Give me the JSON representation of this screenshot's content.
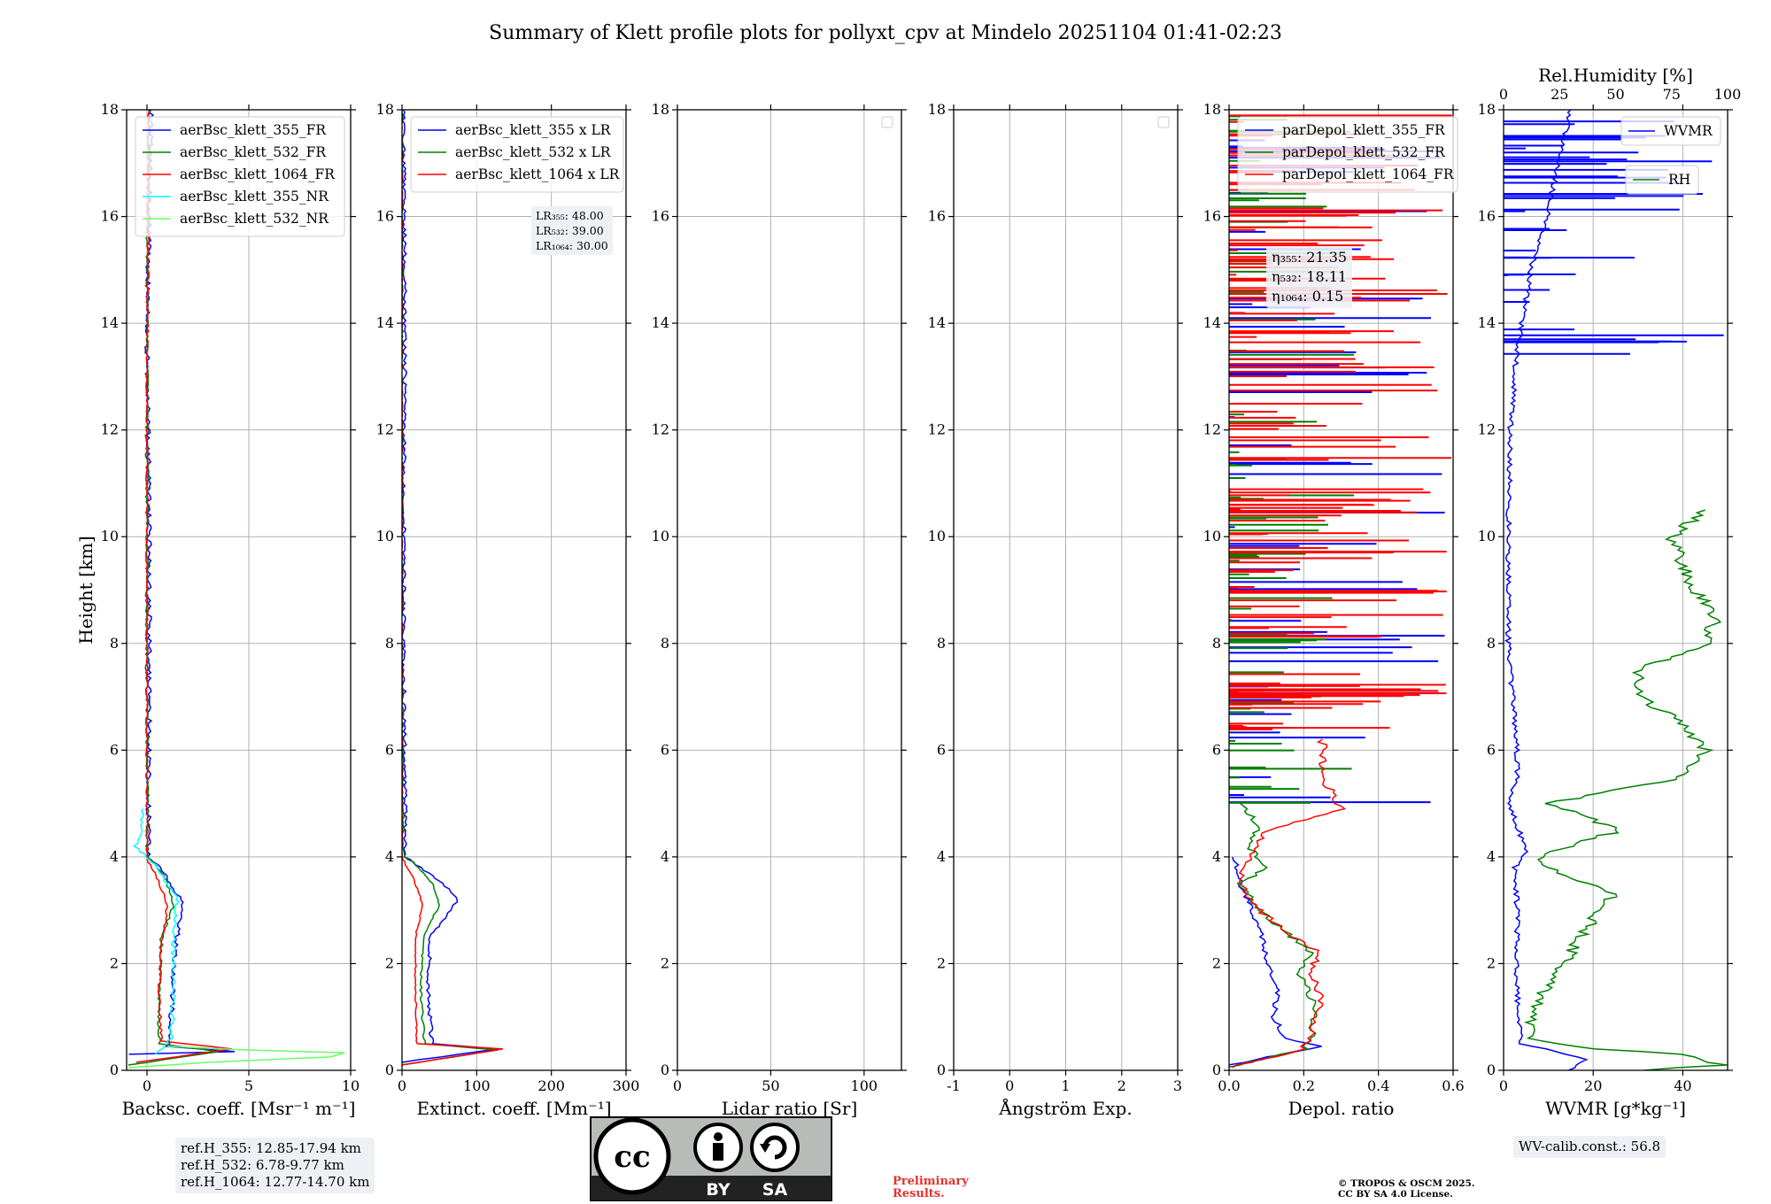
{
  "title": "Summary of Klett profile plots for pollyxt_cpv at Mindelo 20251104 01:41-02:23",
  "colors": {
    "c355": "#0000ff",
    "c532": "#008000",
    "c1064": "#ff0000",
    "c355nr": "#00ffff",
    "c532nr": "#66ff66",
    "grid": "#b0b0b0"
  },
  "chart_data": [
    {
      "type": "line",
      "id": "backscatter",
      "xlabel": "Backsc. coeff. [Msr⁻¹ m⁻¹]",
      "ylabel": "Height [km]",
      "xlim": [
        -1,
        10
      ],
      "ylim": [
        0,
        18
      ],
      "xticks": [
        0,
        5,
        10
      ],
      "yticks": [
        0,
        2,
        4,
        6,
        8,
        10,
        12,
        14,
        16,
        18
      ],
      "legend": "top-left",
      "series": [
        {
          "name": "aerBsc_klett_355_FR",
          "color": "c355",
          "noise": 0.12,
          "points": [
            [
              -0.9,
              0.3
            ],
            [
              4.2,
              0.35
            ],
            [
              1.0,
              0.45
            ],
            [
              1.2,
              1.0
            ],
            [
              1.3,
              2.0
            ],
            [
              1.6,
              2.8
            ],
            [
              1.7,
              3.2
            ],
            [
              1.3,
              3.4
            ],
            [
              0.6,
              3.8
            ],
            [
              0.05,
              4.0
            ],
            [
              0.1,
              6
            ],
            [
              0.1,
              10
            ],
            [
              0,
              14
            ],
            [
              0.1,
              16
            ],
            [
              0.2,
              18
            ]
          ]
        },
        {
          "name": "aerBsc_klett_532_FR",
          "color": "c532",
          "noise": 0.08,
          "points": [
            [
              -0.9,
              0.1
            ],
            [
              3.5,
              0.35
            ],
            [
              0.6,
              0.5
            ],
            [
              0.6,
              1.5
            ],
            [
              0.7,
              2.5
            ],
            [
              1.3,
              3.1
            ],
            [
              1.0,
              3.5
            ],
            [
              0.4,
              3.9
            ],
            [
              0,
              4.0
            ],
            [
              0,
              6
            ],
            [
              0,
              10
            ],
            [
              0,
              14
            ],
            [
              0.05,
              16
            ],
            [
              0.1,
              18
            ]
          ]
        },
        {
          "name": "aerBsc_klett_1064_FR",
          "color": "c1064",
          "noise": 0.06,
          "points": [
            [
              -0.5,
              0.15
            ],
            [
              4.2,
              0.4
            ],
            [
              0.7,
              0.55
            ],
            [
              0.6,
              1.5
            ],
            [
              0.7,
              2.3
            ],
            [
              1.0,
              3.1
            ],
            [
              0.5,
              3.6
            ],
            [
              0.1,
              3.9
            ],
            [
              0,
              4.0
            ],
            [
              0,
              8
            ],
            [
              0,
              12
            ],
            [
              0.05,
              16
            ],
            [
              0.1,
              18
            ]
          ]
        },
        {
          "name": "aerBsc_klett_355_NR",
          "color": "c355nr",
          "noise": 0.1,
          "points": [
            [
              0.5,
              0.3
            ],
            [
              1.2,
              0.6
            ],
            [
              1.3,
              1.5
            ],
            [
              1.3,
              2.5
            ],
            [
              1.5,
              3.2
            ],
            [
              0.3,
              3.9
            ],
            [
              -0.6,
              4.2
            ],
            [
              -0.3,
              4.5
            ],
            [
              -0.2,
              4.9
            ]
          ]
        },
        {
          "name": "aerBsc_klett_532_NR",
          "color": "c532nr",
          "noise": 0.0,
          "points": [
            [
              -0.9,
              0.05
            ],
            [
              3.0,
              0.15
            ],
            [
              9.0,
              0.25
            ],
            [
              9.7,
              0.33
            ],
            [
              5.0,
              0.38
            ],
            [
              1.0,
              0.45
            ]
          ]
        }
      ],
      "info_box": [
        "ref.H_355: 12.85-17.94 km",
        "ref.H_532: 6.78-9.77 km",
        "ref.H_1064: 12.77-14.70 km"
      ]
    },
    {
      "type": "line",
      "id": "extinction",
      "xlabel": "Extinct. coeff. [Mm⁻¹]",
      "xlim": [
        0,
        300
      ],
      "ylim": [
        0,
        18
      ],
      "xticks": [
        0,
        100,
        200,
        300
      ],
      "yticks": [
        0,
        2,
        4,
        6,
        8,
        10,
        12,
        14,
        16,
        18
      ],
      "legend": "top-left",
      "series": [
        {
          "name": "aerBsc_klett_355 x LR",
          "color": "c355",
          "noise": 2.5,
          "points": [
            [
              0,
              0.15
            ],
            [
              130,
              0.4
            ],
            [
              40,
              0.5
            ],
            [
              35,
              1.5
            ],
            [
              38,
              2.5
            ],
            [
              75,
              3.2
            ],
            [
              55,
              3.5
            ],
            [
              25,
              3.8
            ],
            [
              5,
              4.0
            ],
            [
              2,
              8
            ],
            [
              3,
              12
            ],
            [
              4,
              14.5
            ],
            [
              3,
              16
            ],
            [
              2,
              18
            ]
          ]
        },
        {
          "name": "aerBsc_klett_532 x LR",
          "color": "c532",
          "noise": 1.5,
          "points": [
            [
              0,
              0.1
            ],
            [
              128,
              0.38
            ],
            [
              30,
              0.5
            ],
            [
              25,
              1.5
            ],
            [
              28,
              2.5
            ],
            [
              50,
              3.1
            ],
            [
              40,
              3.5
            ],
            [
              15,
              3.9
            ],
            [
              2,
              4.0
            ],
            [
              0,
              8
            ],
            [
              0,
              14
            ],
            [
              0,
              18
            ]
          ]
        },
        {
          "name": "aerBsc_klett_1064 x LR",
          "color": "c1064",
          "noise": 1.0,
          "points": [
            [
              0,
              0.1
            ],
            [
              135,
              0.4
            ],
            [
              20,
              0.5
            ],
            [
              18,
              1.5
            ],
            [
              18,
              2.5
            ],
            [
              28,
              3.1
            ],
            [
              15,
              3.6
            ],
            [
              3,
              3.9
            ],
            [
              0,
              4.0
            ],
            [
              0,
              10
            ],
            [
              0,
              18
            ]
          ]
        }
      ],
      "info_box": [
        "LR₃₅₅: 48.00",
        "LR₅₃₂: 39.00",
        "LR₁₀₆₄: 30.00"
      ]
    },
    {
      "type": "line",
      "id": "lidar-ratio",
      "xlabel": "Lidar ratio [Sr]",
      "xlim": [
        0,
        120
      ],
      "ylim": [
        0,
        18
      ],
      "xticks": [
        0,
        50,
        100
      ],
      "yticks": [
        0,
        2,
        4,
        6,
        8,
        10,
        12,
        14,
        16,
        18
      ],
      "legend": "top-right-empty",
      "series": []
    },
    {
      "type": "line",
      "id": "angstrom",
      "xlabel": "Ångström Exp.",
      "xlim": [
        -1,
        3
      ],
      "ylim": [
        0,
        18
      ],
      "xticks": [
        -1,
        0,
        1,
        2,
        3
      ],
      "yticks": [
        0,
        2,
        4,
        6,
        8,
        10,
        12,
        14,
        16,
        18
      ],
      "legend": "top-right-empty",
      "series": []
    },
    {
      "type": "line",
      "id": "depol",
      "xlabel": "Depol. ratio",
      "xlim": [
        0,
        0.6
      ],
      "ylim": [
        0,
        18
      ],
      "xticks": [
        0.0,
        0.2,
        0.4,
        0.6
      ],
      "yticks": [
        0,
        2,
        4,
        6,
        8,
        10,
        12,
        14,
        16,
        18
      ],
      "legend": "top-left",
      "series": [
        {
          "name": "parDepol_klett_355_FR",
          "color": "c355",
          "noise": 0.008,
          "points": [
            [
              0,
              0.1
            ],
            [
              0.25,
              0.45
            ],
            [
              0.15,
              0.6
            ],
            [
              0.12,
              1.0
            ],
            [
              0.13,
              1.5
            ],
            [
              0.1,
              2.0
            ],
            [
              0.09,
              2.5
            ],
            [
              0.06,
              3.0
            ],
            [
              0.03,
              3.5
            ],
            [
              0.02,
              3.9
            ],
            [
              0.01,
              4.0
            ]
          ],
          "spikes": {
            "from": 4.8,
            "to": 18,
            "count": 55,
            "max": 0.6,
            "seed": 3
          }
        },
        {
          "name": "parDepol_klett_532_FR",
          "color": "c532",
          "noise": 0.01,
          "points": [
            [
              0,
              0.05
            ],
            [
              0.2,
              0.4
            ],
            [
              0.22,
              0.6
            ],
            [
              0.23,
              1.2
            ],
            [
              0.19,
              1.8
            ],
            [
              0.22,
              2.2
            ],
            [
              0.15,
              2.6
            ],
            [
              0.08,
              3.0
            ],
            [
              0.03,
              3.5
            ],
            [
              0.1,
              3.8
            ],
            [
              0.05,
              4.2
            ],
            [
              0.08,
              4.6
            ],
            [
              0.03,
              5.0
            ]
          ],
          "spikes": {
            "from": 5.0,
            "to": 18,
            "count": 70,
            "max": 0.35,
            "seed": 7
          }
        },
        {
          "name": "parDepol_klett_1064_FR",
          "color": "c1064",
          "noise": 0.012,
          "points": [
            [
              0,
              0.05
            ],
            [
              0.2,
              0.4
            ],
            [
              0.22,
              0.7
            ],
            [
              0.25,
              1.3
            ],
            [
              0.22,
              1.8
            ],
            [
              0.24,
              2.2
            ],
            [
              0.15,
              2.6
            ],
            [
              0.08,
              3.0
            ],
            [
              0.03,
              3.5
            ],
            [
              0.05,
              4.0
            ],
            [
              0.1,
              4.5
            ],
            [
              0.3,
              4.9
            ],
            [
              0.25,
              5.5
            ],
            [
              0.25,
              6.2
            ]
          ],
          "spikes": {
            "from": 6.0,
            "to": 18,
            "count": 130,
            "max": 0.6,
            "seed": 11
          }
        }
      ],
      "info_box": [
        "η₃₅₅: 21.35",
        "η₅₃₂: 18.11",
        "η₁₀₆₄: 0.15"
      ]
    },
    {
      "type": "line",
      "id": "wvmr",
      "xlabel": "WVMR [g*kg⁻¹]",
      "xlim": [
        0,
        50
      ],
      "ylim": [
        0,
        18
      ],
      "xticks": [
        0,
        20,
        40
      ],
      "yticks": [
        0,
        2,
        4,
        6,
        8,
        10,
        12,
        14,
        16,
        18
      ],
      "top_axis": {
        "label": "Rel.Humidity [%]",
        "xlim": [
          0,
          100
        ],
        "xticks": [
          0,
          25,
          50,
          75,
          100
        ]
      },
      "legend": "top-right",
      "series": [
        {
          "name": "WVMR",
          "color": "c355",
          "axis": "bottom",
          "noise": 0.6,
          "points": [
            [
              15,
              0
            ],
            [
              18,
              0.2
            ],
            [
              12,
              0.35
            ],
            [
              4,
              0.5
            ],
            [
              3,
              1.5
            ],
            [
              3,
              3.0
            ],
            [
              2.5,
              3.8
            ],
            [
              5,
              4.1
            ],
            [
              3,
              4.6
            ],
            [
              1,
              5.0
            ],
            [
              3,
              5.5
            ],
            [
              3,
              6.0
            ],
            [
              2,
              7.0
            ],
            [
              1,
              8.0
            ],
            [
              1,
              10
            ],
            [
              1.5,
              12
            ],
            [
              3,
              13.5
            ],
            [
              6,
              15
            ],
            [
              10,
              16
            ],
            [
              12,
              17
            ],
            [
              15,
              18
            ]
          ],
          "spikes": {
            "from": 13,
            "to": 18,
            "count": 40,
            "max": 50,
            "seed": 5
          }
        },
        {
          "name": "RH",
          "color": "c532",
          "axis": "top",
          "noise": 3,
          "points": [
            [
              60,
              0
            ],
            [
              98,
              0.1
            ],
            [
              80,
              0.3
            ],
            [
              40,
              0.4
            ],
            [
              12,
              0.6
            ],
            [
              12,
              1.0
            ],
            [
              18,
              1.5
            ],
            [
              35,
              2.5
            ],
            [
              42,
              3.0
            ],
            [
              50,
              3.3
            ],
            [
              25,
              3.7
            ],
            [
              15,
              4.0
            ],
            [
              52,
              4.5
            ],
            [
              20,
              5.0
            ],
            [
              80,
              5.5
            ],
            [
              90,
              6.0
            ],
            [
              80,
              6.5
            ],
            [
              60,
              7.0
            ],
            [
              60,
              7.5
            ],
            [
              90,
              8.0
            ],
            [
              95,
              8.5
            ],
            [
              85,
              9.0
            ],
            [
              80,
              9.5
            ],
            [
              75,
              10.0
            ],
            [
              90,
              10.5
            ]
          ]
        }
      ],
      "info_box": [
        "WV-calib.const.: 56.8"
      ]
    }
  ],
  "footer": {
    "cc_main": "cc",
    "cc_by": "BY",
    "cc_sa": "SA",
    "preliminary": [
      "Preliminary",
      "Results."
    ],
    "copyright": [
      "© TROPOS & OSCM 2025.",
      "CC BY SA 4.0 License."
    ]
  }
}
